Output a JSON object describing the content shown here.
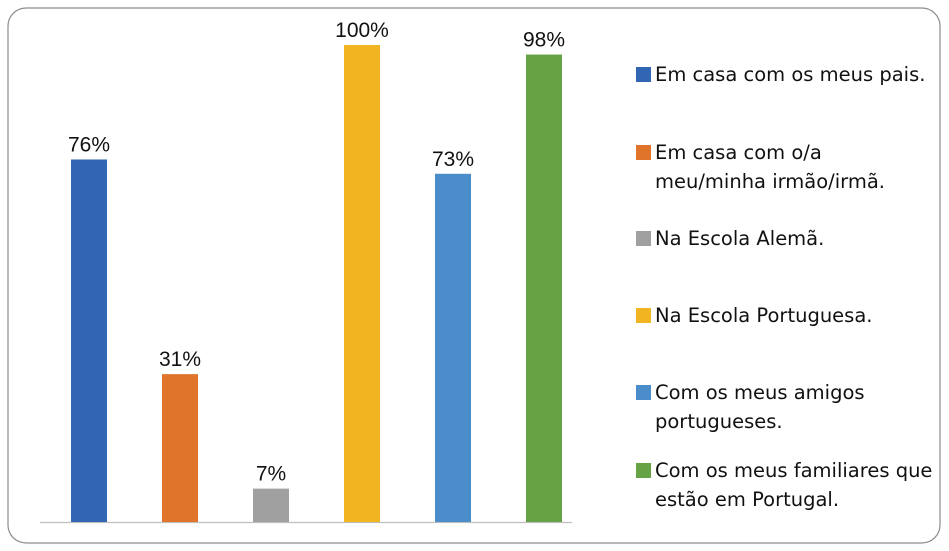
{
  "chart_data": {
    "type": "bar",
    "ylim": [
      0,
      100
    ],
    "series": [
      {
        "name": "Em casa com os meus pais.",
        "color": "#3166b5",
        "values": [
          76
        ],
        "value_labels": [
          "76%"
        ]
      },
      {
        "name": "Em casa com o/a meu/minha irmão/irmã.",
        "color": "#e0742a",
        "values": [
          31
        ],
        "value_labels": [
          "31%"
        ]
      },
      {
        "name": "Na Escola Alemã.",
        "color": "#a0a0a0",
        "values": [
          7
        ],
        "value_labels": [
          "7%"
        ]
      },
      {
        "name": "Na Escola Portuguesa.",
        "color": "#f0b520",
        "values": [
          100
        ],
        "value_labels": [
          "100%"
        ]
      },
      {
        "name": "Com os meus amigos portugueses.",
        "color": "#4b8dcb",
        "values": [
          73
        ],
        "value_labels": [
          "73%"
        ]
      },
      {
        "name": "Com os meus familiares que estão em Portugal.",
        "color": "#66a344",
        "values": [
          98
        ],
        "value_labels": [
          "98%"
        ]
      }
    ],
    "legend": "right"
  }
}
